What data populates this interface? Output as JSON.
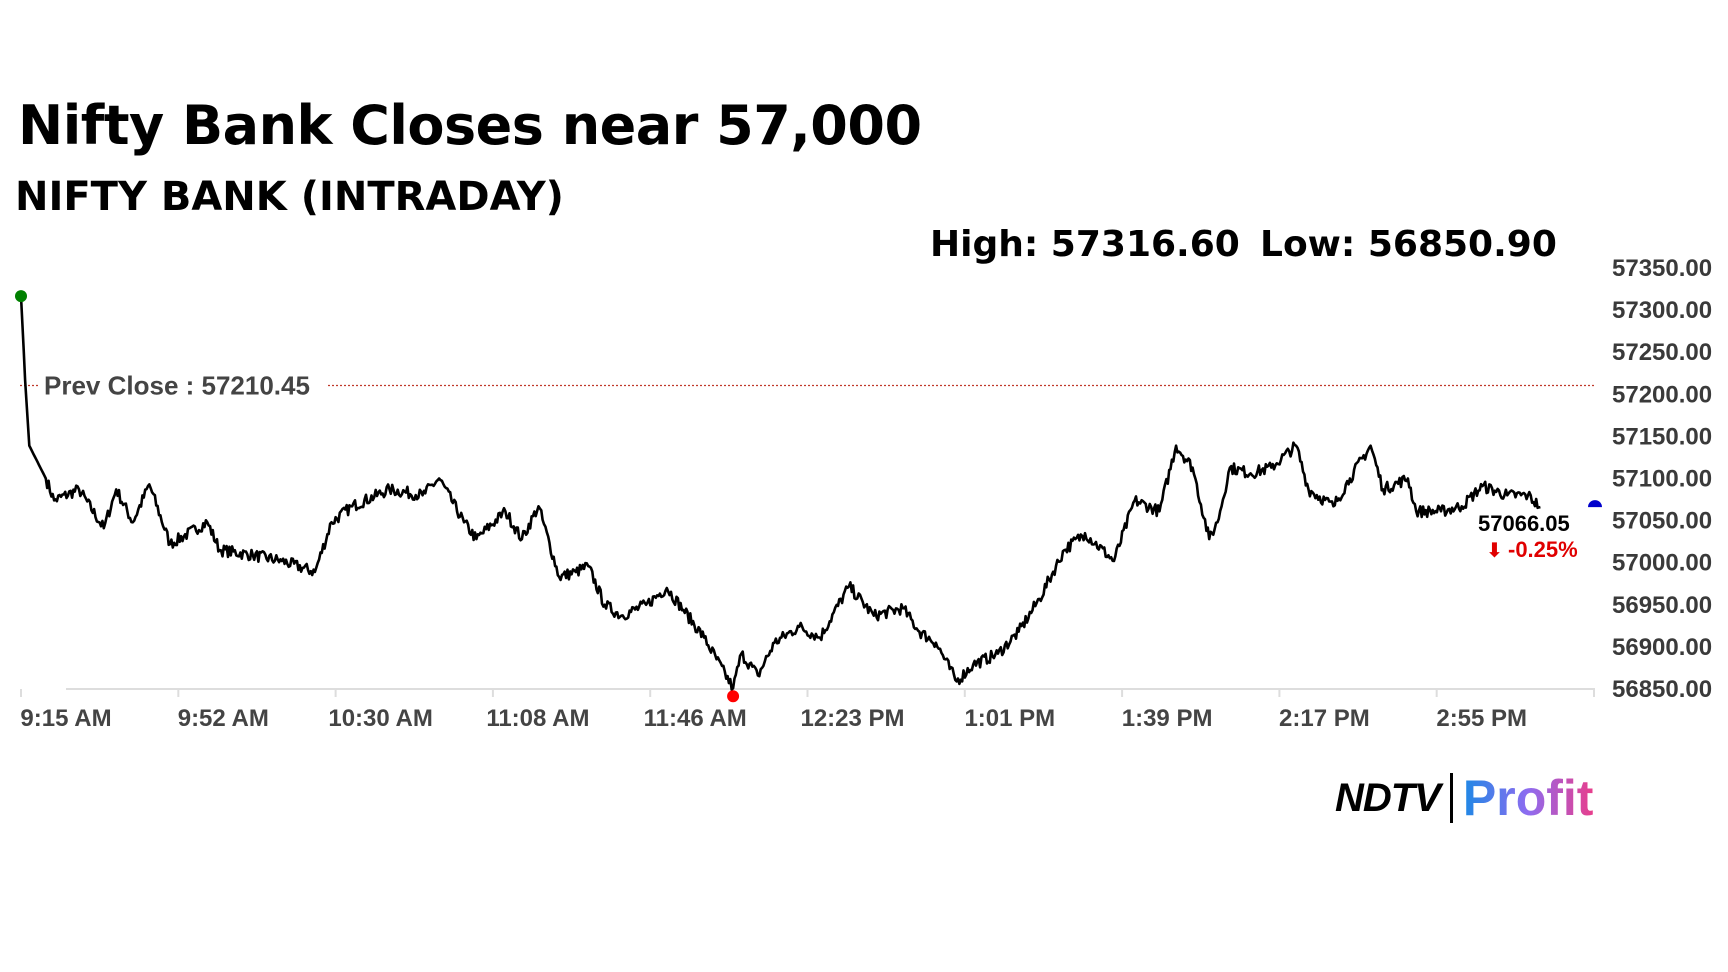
{
  "header": {
    "title": "Nifty Bank Closes near 57,000",
    "subtitle": "NIFTY BANK (INTRADAY)",
    "high": "High: 57316.60",
    "low": "Low: 56850.90"
  },
  "chart_data": {
    "type": "line",
    "title": "NIFTY BANK (INTRADAY)",
    "ylim": [
      56850,
      57350
    ],
    "y_ticks": [
      "57350.00",
      "57300.00",
      "57250.00",
      "57200.00",
      "57150.00",
      "57100.00",
      "57050.00",
      "57000.00",
      "56950.00",
      "56900.00",
      "56850.00"
    ],
    "x_ticks": [
      "9:15 AM",
      "9:52 AM",
      "10:30 AM",
      "11:08 AM",
      "11:46 AM",
      "12:23 PM",
      "1:01 PM",
      "1:39 PM",
      "2:17 PM",
      "2:55 PM"
    ],
    "prev_close": {
      "label": "Prev Close : 57210.45",
      "value": 57210.45
    },
    "last": {
      "value_label": "57066.05",
      "change_label": "-0.25%",
      "value": 57066.05
    },
    "series": [
      {
        "name": "NIFTY BANK",
        "x_minutes_from_open": [
          0,
          1,
          2,
          6,
          8,
          14,
          20,
          23,
          27,
          31,
          36,
          45,
          48,
          56,
          63,
          71,
          75,
          80,
          89,
          97,
          101,
          107,
          110,
          117,
          121,
          125,
          130,
          134,
          137,
          141,
          145,
          151,
          156,
          160,
          165,
          172,
          174,
          178,
          182,
          188,
          193,
          200,
          206,
          213,
          217,
          221,
          226,
          230,
          236,
          241,
          246,
          252,
          257,
          264,
          269,
          275,
          279,
          283,
          287,
          289,
          292,
          297,
          302,
          308,
          311,
          317,
          321,
          326,
          329,
          335,
          337,
          343,
          348,
          353,
          359,
          364,
          367
        ],
        "values": [
          57316.6,
          57217,
          57139,
          57100,
          57074,
          57087,
          57041,
          57087,
          57048,
          57093,
          57022,
          57048,
          57015,
          57009,
          57002,
          56989,
          57048,
          57067,
          57087,
          57080,
          57100,
          57048,
          57028,
          57061,
          57028,
          57067,
          56983,
          56989,
          56996,
          56950,
          56937,
          56950,
          56970,
          56944,
          56911,
          56850.9,
          56892,
          56866,
          56905,
          56924,
          56911,
          56972,
          56937,
          56946,
          56918,
          56905,
          56859,
          56879,
          56892,
          56918,
          56957,
          57015,
          57035,
          57002,
          57074,
          57061,
          57139,
          57113,
          57028,
          57048,
          57113,
          57106,
          57113,
          57139,
          57087,
          57067,
          57100,
          57139,
          57087,
          57100,
          57061,
          57061,
          57067,
          57091,
          57080,
          57080,
          57066.05
        ]
      }
    ],
    "colors": {
      "line": "#000000",
      "high_marker": "#008000",
      "low_marker": "#ff0000",
      "last_marker": "#0000cc",
      "prev_close": "#c0392b",
      "down": "#e00000"
    }
  },
  "brand": {
    "name": "NDTV",
    "product": "Profit"
  }
}
